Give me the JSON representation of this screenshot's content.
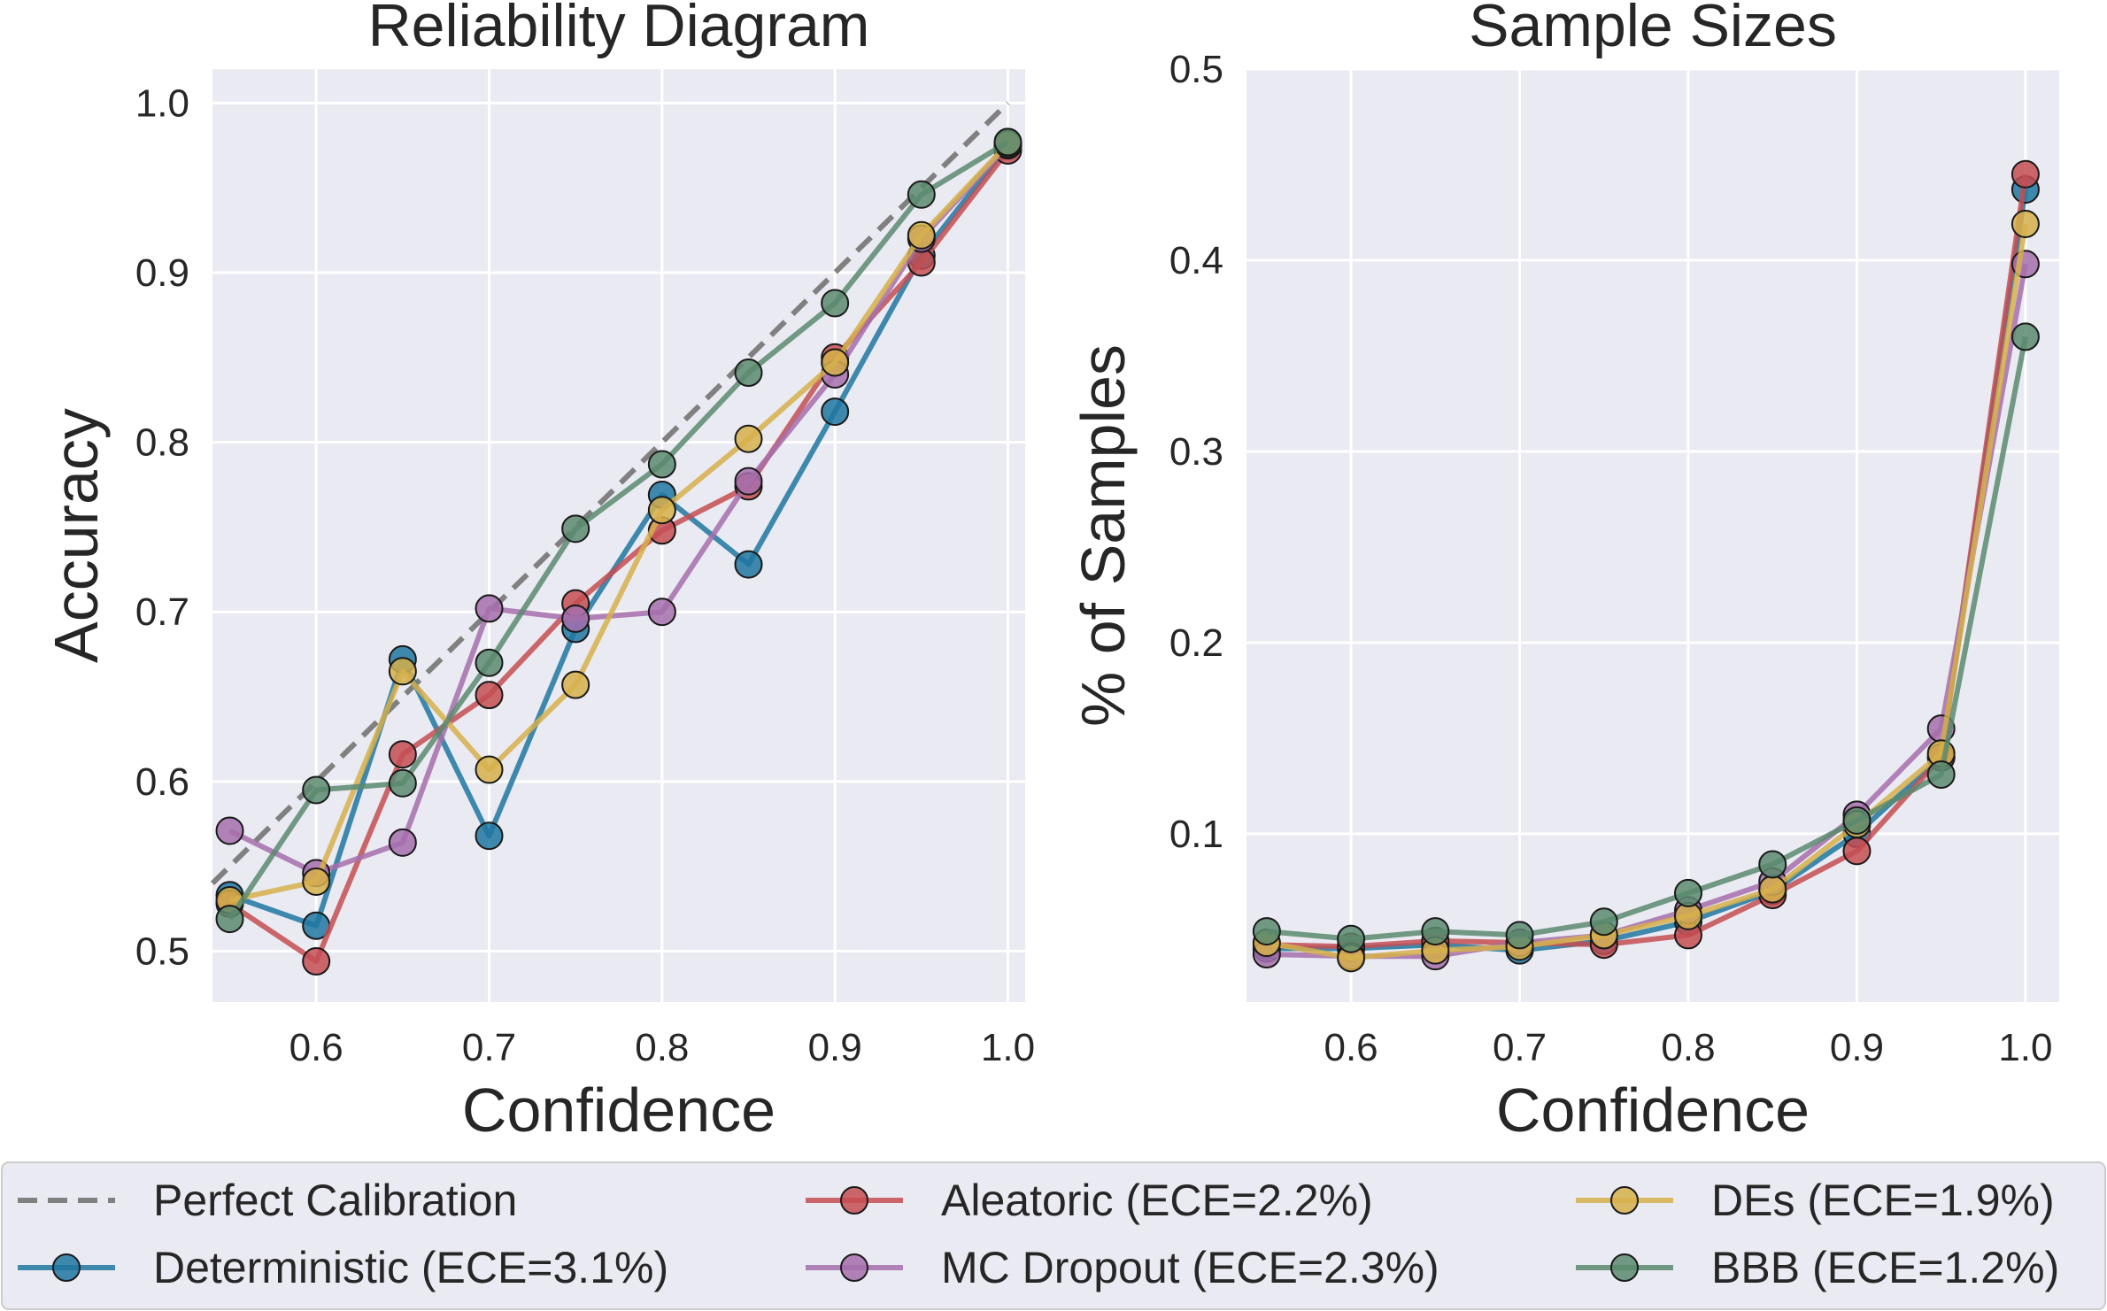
{
  "legend": {
    "items": [
      {
        "label": "Perfect Calibration",
        "color": "#808080",
        "style": "dashed"
      },
      {
        "label": "Deterministic (ECE=3.1%)",
        "color": "#1f77a0",
        "style": "line-marker"
      },
      {
        "label": "Aleatoric (ECE=2.2%)",
        "color": "#c44e52",
        "style": "line-marker"
      },
      {
        "label": "MC Dropout (ECE=2.3%)",
        "color": "#a66fac",
        "style": "line-marker"
      },
      {
        "label": "DEs (ECE=1.9%)",
        "color": "#d6b04b",
        "style": "line-marker"
      },
      {
        "label": "BBB (ECE=1.2%)",
        "color": "#5a8a6e",
        "style": "line-marker"
      }
    ],
    "placement": "bottom"
  },
  "chart_data": [
    {
      "type": "line",
      "title": "Reliability Diagram",
      "xlabel": "Confidence",
      "ylabel": "Accuracy",
      "xlim": [
        0.54,
        1.01
      ],
      "ylim": [
        0.47,
        1.02
      ],
      "xticks": [
        "0.6",
        "0.7",
        "0.8",
        "0.9",
        "1.0"
      ],
      "yticks": [
        "0.5",
        "0.6",
        "0.7",
        "0.8",
        "0.9",
        "1.0"
      ],
      "grid": true,
      "reference_line": {
        "x": [
          0.54,
          1.0
        ],
        "y": [
          0.54,
          1.0
        ],
        "style": "dashed"
      },
      "x": [
        0.55,
        0.6,
        0.65,
        0.7,
        0.75,
        0.8,
        0.85,
        0.9,
        0.95,
        1.0
      ],
      "series": [
        {
          "name": "Deterministic (ECE=3.1%)",
          "color": "#1f77a0",
          "values": [
            0.533,
            0.515,
            0.672,
            0.568,
            0.69,
            0.769,
            0.728,
            0.818,
            0.91,
            0.975
          ]
        },
        {
          "name": "Aleatoric (ECE=2.2%)",
          "color": "#c44e52",
          "values": [
            0.528,
            0.494,
            0.616,
            0.651,
            0.705,
            0.748,
            0.774,
            0.85,
            0.906,
            0.972
          ]
        },
        {
          "name": "MC Dropout (ECE=2.3%)",
          "color": "#a66fac",
          "values": [
            0.571,
            0.546,
            0.564,
            0.702,
            0.696,
            0.7,
            0.777,
            0.84,
            0.92,
            0.975
          ]
        },
        {
          "name": "DEs (ECE=1.9%)",
          "color": "#d6b04b",
          "values": [
            0.53,
            0.541,
            0.665,
            0.607,
            0.657,
            0.76,
            0.802,
            0.847,
            0.922,
            0.976
          ]
        },
        {
          "name": "BBB (ECE=1.2%)",
          "color": "#5a8a6e",
          "values": [
            0.519,
            0.595,
            0.599,
            0.67,
            0.749,
            0.787,
            0.841,
            0.882,
            0.946,
            0.977
          ]
        }
      ]
    },
    {
      "type": "line",
      "title": "Sample Sizes",
      "xlabel": "Confidence",
      "ylabel": "% of Samples",
      "xlim": [
        0.538,
        1.02
      ],
      "ylim": [
        0.012,
        0.5
      ],
      "xticks": [
        "0.6",
        "0.7",
        "0.8",
        "0.9",
        "1.0"
      ],
      "yticks": [
        "0.1",
        "0.2",
        "0.3",
        "0.4",
        "0.5"
      ],
      "grid": true,
      "x": [
        0.55,
        0.6,
        0.65,
        0.7,
        0.75,
        0.8,
        0.85,
        0.9,
        0.95,
        1.0
      ],
      "series": [
        {
          "name": "Deterministic (ECE=3.1%)",
          "color": "#1f77a0",
          "values": [
            0.04,
            0.04,
            0.042,
            0.039,
            0.044,
            0.054,
            0.07,
            0.1,
            0.14,
            0.437
          ]
        },
        {
          "name": "Aleatoric (ECE=2.2%)",
          "color": "#c44e52",
          "values": [
            0.042,
            0.041,
            0.044,
            0.043,
            0.042,
            0.047,
            0.068,
            0.091,
            0.14,
            0.445
          ]
        },
        {
          "name": "MC Dropout (ECE=2.3%)",
          "color": "#a66fac",
          "values": [
            0.037,
            0.036,
            0.036,
            0.043,
            0.047,
            0.06,
            0.075,
            0.11,
            0.155,
            0.398
          ]
        },
        {
          "name": "DEs (ECE=1.9%)",
          "color": "#d6b04b",
          "values": [
            0.043,
            0.035,
            0.039,
            0.041,
            0.047,
            0.057,
            0.071,
            0.105,
            0.142,
            0.419
          ]
        },
        {
          "name": "BBB (ECE=1.2%)",
          "color": "#5a8a6e",
          "values": [
            0.049,
            0.045,
            0.049,
            0.047,
            0.054,
            0.069,
            0.084,
            0.107,
            0.131,
            0.36
          ]
        }
      ]
    }
  ]
}
